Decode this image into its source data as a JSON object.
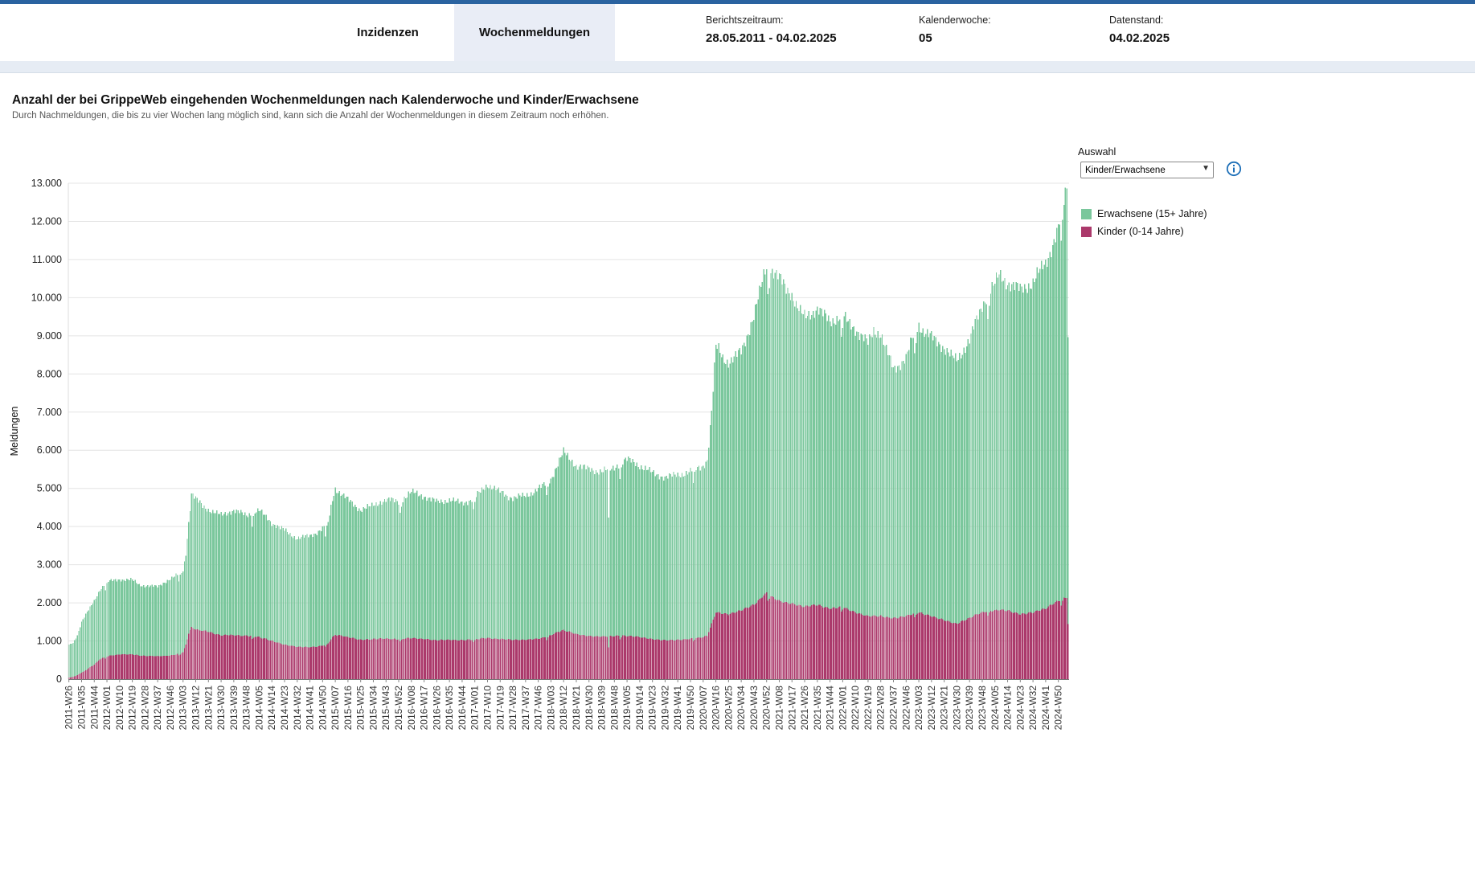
{
  "colors": {
    "accent": "#2a63a0",
    "tab_active_bg": "#e9edf6",
    "band_bg": "#e6ecf4",
    "info_icon": "#1d6fb8",
    "adults": "#7ac79c",
    "children": "#ab396b"
  },
  "header": {
    "tabs": [
      {
        "label": "Inzidenzen",
        "active": false
      },
      {
        "label": "Wochenmeldungen",
        "active": true
      }
    ],
    "meta": [
      {
        "label": "Berichtszeitraum:",
        "value": "28.05.2011 - 04.02.2025"
      },
      {
        "label": "Kalenderwoche:",
        "value": "05"
      },
      {
        "label": "Datenstand:",
        "value": "04.02.2025"
      }
    ]
  },
  "page": {
    "title": "Anzahl der bei GrippeWeb eingehenden Wochenmeldungen nach Kalenderwoche und Kinder/Erwachsene",
    "subtitle": "Durch Nachmeldungen, die bis zu vier Wochen lang möglich sind, kann sich die Anzahl der Wochenmeldungen in diesem Zeitraum noch erhöhen."
  },
  "controls": {
    "label": "Auswahl",
    "selected": "Kinder/Erwachsene",
    "info_icon": "info-icon"
  },
  "legend": [
    {
      "label": "Erwachsene (15+ Jahre)",
      "color": "#7ac79c"
    },
    {
      "label": "Kinder (0-14 Jahre)",
      "color": "#ab396b"
    }
  ],
  "chart_data": {
    "type": "bar",
    "stacked": true,
    "title": "Anzahl der bei GrippeWeb eingehenden Wochenmeldungen nach Kalenderwoche und Kinder/Erwachsene",
    "xlabel": "",
    "ylabel": "Meldungen",
    "ylim": [
      0,
      13000
    ],
    "ytick_step": 1000,
    "ytick_format": "de-thousands-dot",
    "grid": "horizontal",
    "legend_position": "right",
    "x_start": "2011-W26",
    "x_end": "2025-W05",
    "total_weeks": 710,
    "xtick_every": 9,
    "xtick_labels": [
      "2011-W26",
      "2011-W35",
      "2011-W44",
      "2012-W01",
      "2012-W10",
      "2012-W19",
      "2012-W28",
      "2012-W37",
      "2012-W46",
      "2013-W03",
      "2013-W12",
      "2013-W21",
      "2013-W30",
      "2013-W39",
      "2013-W48",
      "2014-W05",
      "2014-W14",
      "2014-W23",
      "2014-W32",
      "2014-W41",
      "2014-W50",
      "2015-W07",
      "2015-W16",
      "2015-W25",
      "2015-W34",
      "2015-W43",
      "2015-W52",
      "2016-W08",
      "2016-W17",
      "2016-W26",
      "2016-W35",
      "2016-W44",
      "2017-W01",
      "2017-W10",
      "2017-W19",
      "2017-W28",
      "2017-W37",
      "2017-W46",
      "2018-W03",
      "2018-W12",
      "2018-W21",
      "2018-W30",
      "2018-W39",
      "2018-W48",
      "2019-W05",
      "2019-W14",
      "2019-W23",
      "2019-W32",
      "2019-W41",
      "2019-W50",
      "2020-W07",
      "2020-W16",
      "2020-W25",
      "2020-W34",
      "2020-W43",
      "2020-W52",
      "2021-W08",
      "2021-W17",
      "2021-W26",
      "2021-W35",
      "2021-W44",
      "2022-W01",
      "2022-W10",
      "2022-W19",
      "2022-W28",
      "2022-W37",
      "2022-W46",
      "2023-W03",
      "2023-W12",
      "2023-W21",
      "2023-W30",
      "2023-W39",
      "2023-W48",
      "2024-W05",
      "2024-W14",
      "2024-W23",
      "2024-W32",
      "2024-W41",
      "2024-W50"
    ],
    "year_start_indices": [
      27,
      79,
      131,
      183,
      236,
      288,
      340,
      392,
      444,
      497,
      549,
      601,
      653,
      705
    ],
    "series_names": [
      "Kinder (0-14 Jahre)",
      "Erwachsene (15+ Jahre)"
    ],
    "colors": {
      "adults": "#7ac79c",
      "children": "#ab396b"
    },
    "keypoints_columns": [
      "week_index",
      "total_meldungen",
      "kinder_meldungen"
    ],
    "keypoints": [
      [
        0,
        900,
        40
      ],
      [
        3,
        950,
        60
      ],
      [
        6,
        1150,
        100
      ],
      [
        9,
        1500,
        170
      ],
      [
        13,
        1750,
        260
      ],
      [
        18,
        2050,
        380
      ],
      [
        22,
        2350,
        520
      ],
      [
        27,
        2550,
        600
      ],
      [
        36,
        2620,
        650
      ],
      [
        45,
        2600,
        650
      ],
      [
        50,
        2480,
        620
      ],
      [
        54,
        2450,
        610
      ],
      [
        63,
        2420,
        600
      ],
      [
        68,
        2550,
        610
      ],
      [
        72,
        2620,
        620
      ],
      [
        78,
        2750,
        660
      ],
      [
        81,
        2850,
        700
      ],
      [
        83,
        3300,
        900
      ],
      [
        85,
        4100,
        1200
      ],
      [
        87,
        4850,
        1350
      ],
      [
        90,
        4720,
        1300
      ],
      [
        95,
        4550,
        1270
      ],
      [
        99,
        4450,
        1250
      ],
      [
        104,
        4350,
        1180
      ],
      [
        108,
        4300,
        1150
      ],
      [
        113,
        4380,
        1160
      ],
      [
        117,
        4420,
        1150
      ],
      [
        122,
        4350,
        1140
      ],
      [
        126,
        4300,
        1140
      ],
      [
        131,
        4380,
        1120
      ],
      [
        135,
        4420,
        1100
      ],
      [
        140,
        4250,
        1050
      ],
      [
        144,
        4100,
        1000
      ],
      [
        149,
        3980,
        950
      ],
      [
        153,
        3900,
        900
      ],
      [
        158,
        3780,
        870
      ],
      [
        162,
        3700,
        850
      ],
      [
        167,
        3720,
        840
      ],
      [
        171,
        3760,
        840
      ],
      [
        176,
        3850,
        850
      ],
      [
        180,
        3950,
        880
      ],
      [
        184,
        4100,
        940
      ],
      [
        187,
        4700,
        1100
      ],
      [
        189,
        5000,
        1160
      ],
      [
        193,
        4880,
        1140
      ],
      [
        198,
        4700,
        1100
      ],
      [
        203,
        4550,
        1060
      ],
      [
        207,
        4450,
        1030
      ],
      [
        212,
        4500,
        1040
      ],
      [
        216,
        4550,
        1050
      ],
      [
        221,
        4650,
        1060
      ],
      [
        225,
        4700,
        1060
      ],
      [
        230,
        4680,
        1050
      ],
      [
        234,
        4650,
        1050
      ],
      [
        239,
        4780,
        1070
      ],
      [
        243,
        4900,
        1080
      ],
      [
        248,
        4850,
        1060
      ],
      [
        252,
        4800,
        1050
      ],
      [
        257,
        4700,
        1030
      ],
      [
        261,
        4650,
        1020
      ],
      [
        266,
        4680,
        1030
      ],
      [
        270,
        4700,
        1030
      ],
      [
        275,
        4650,
        1020
      ],
      [
        279,
        4620,
        1020
      ],
      [
        284,
        4680,
        1030
      ],
      [
        288,
        4750,
        1040
      ],
      [
        293,
        4950,
        1070
      ],
      [
        297,
        5100,
        1080
      ],
      [
        302,
        5000,
        1060
      ],
      [
        306,
        4900,
        1050
      ],
      [
        311,
        4800,
        1040
      ],
      [
        315,
        4760,
        1030
      ],
      [
        320,
        4780,
        1030
      ],
      [
        324,
        4800,
        1030
      ],
      [
        329,
        4900,
        1050
      ],
      [
        333,
        5000,
        1060
      ],
      [
        338,
        5100,
        1100
      ],
      [
        342,
        5250,
        1150
      ],
      [
        347,
        5650,
        1240
      ],
      [
        351,
        5950,
        1280
      ],
      [
        356,
        5750,
        1230
      ],
      [
        360,
        5600,
        1180
      ],
      [
        365,
        5550,
        1150
      ],
      [
        369,
        5500,
        1130
      ],
      [
        374,
        5470,
        1120
      ],
      [
        378,
        5450,
        1120
      ],
      [
        382,
        5480,
        1120
      ],
      [
        383,
        4150,
        830
      ],
      [
        384,
        5480,
        1120
      ],
      [
        387,
        5550,
        1130
      ],
      [
        392,
        5700,
        1140
      ],
      [
        396,
        5750,
        1130
      ],
      [
        401,
        5680,
        1120
      ],
      [
        405,
        5600,
        1100
      ],
      [
        410,
        5500,
        1070
      ],
      [
        414,
        5400,
        1050
      ],
      [
        419,
        5340,
        1030
      ],
      [
        423,
        5300,
        1020
      ],
      [
        428,
        5320,
        1020
      ],
      [
        432,
        5350,
        1030
      ],
      [
        437,
        5400,
        1040
      ],
      [
        441,
        5450,
        1060
      ],
      [
        446,
        5520,
        1080
      ],
      [
        450,
        5600,
        1100
      ],
      [
        453,
        5750,
        1140
      ],
      [
        456,
        7000,
        1450
      ],
      [
        459,
        8700,
        1750
      ],
      [
        461,
        8650,
        1740
      ],
      [
        464,
        8450,
        1720
      ],
      [
        468,
        8300,
        1700
      ],
      [
        472,
        8400,
        1750
      ],
      [
        477,
        8600,
        1800
      ],
      [
        481,
        9000,
        1870
      ],
      [
        486,
        9500,
        1950
      ],
      [
        490,
        10100,
        2080
      ],
      [
        493,
        10600,
        2200
      ],
      [
        495,
        10850,
        2250
      ],
      [
        499,
        10700,
        2150
      ],
      [
        504,
        10500,
        2050
      ],
      [
        509,
        10250,
        2000
      ],
      [
        513,
        10100,
        1980
      ],
      [
        516,
        9800,
        1950
      ],
      [
        519,
        9600,
        1920
      ],
      [
        522,
        9500,
        1900
      ],
      [
        526,
        9600,
        1930
      ],
      [
        531,
        9700,
        1950
      ],
      [
        535,
        9550,
        1900
      ],
      [
        540,
        9400,
        1850
      ],
      [
        544,
        9450,
        1870
      ],
      [
        549,
        9500,
        1900
      ],
      [
        553,
        9350,
        1820
      ],
      [
        558,
        9200,
        1750
      ],
      [
        562,
        9000,
        1700
      ],
      [
        567,
        8800,
        1650
      ],
      [
        571,
        9150,
        1660
      ],
      [
        576,
        9050,
        1650
      ],
      [
        580,
        8600,
        1620
      ],
      [
        585,
        8150,
        1600
      ],
      [
        589,
        8250,
        1620
      ],
      [
        594,
        8400,
        1650
      ],
      [
        598,
        8900,
        1700
      ],
      [
        603,
        9300,
        1750
      ],
      [
        607,
        9100,
        1700
      ],
      [
        612,
        8950,
        1650
      ],
      [
        616,
        8850,
        1600
      ],
      [
        621,
        8700,
        1550
      ],
      [
        625,
        8500,
        1500
      ],
      [
        630,
        8350,
        1450
      ],
      [
        634,
        8600,
        1520
      ],
      [
        639,
        8900,
        1600
      ],
      [
        643,
        9300,
        1680
      ],
      [
        648,
        9800,
        1750
      ],
      [
        652,
        10100,
        1780
      ],
      [
        657,
        10350,
        1800
      ],
      [
        660,
        10600,
        1820
      ],
      [
        663,
        10500,
        1810
      ],
      [
        666,
        10400,
        1800
      ],
      [
        670,
        10300,
        1750
      ],
      [
        675,
        10200,
        1700
      ],
      [
        679,
        10300,
        1720
      ],
      [
        684,
        10400,
        1750
      ],
      [
        688,
        10650,
        1800
      ],
      [
        693,
        10900,
        1850
      ],
      [
        697,
        11300,
        1950
      ],
      [
        702,
        11800,
        2050
      ],
      [
        705,
        12300,
        2100
      ],
      [
        708,
        12900,
        2150
      ],
      [
        709,
        9100,
        1450
      ]
    ]
  }
}
